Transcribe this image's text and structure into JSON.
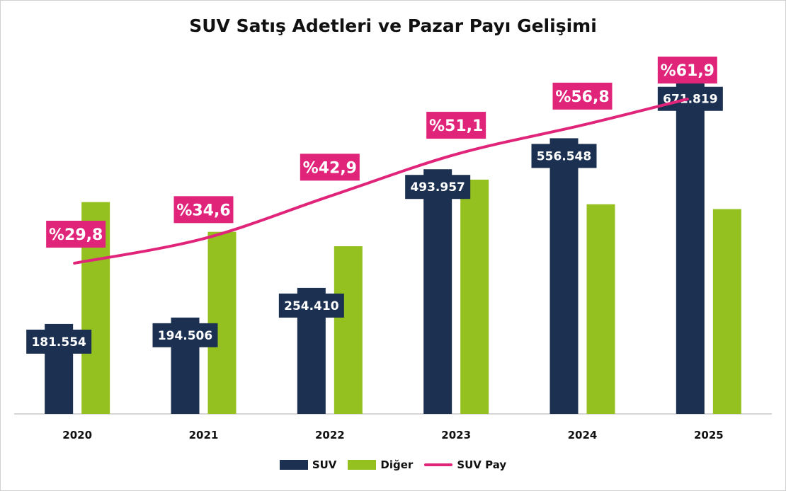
{
  "colors": {
    "suv": "#1c3152",
    "diger": "#94c11f",
    "pay": "#e0247a",
    "axis": "#c8c8c8"
  },
  "chart_data": {
    "type": "bar",
    "title": "SUV Satış Adetleri ve Pazar Payı Gelişimi",
    "categories": [
      "2020",
      "2021",
      "2022",
      "2023",
      "2024",
      "2025"
    ],
    "series": [
      {
        "name": "SUV",
        "type": "bar",
        "values": [
          181554,
          194506,
          254410,
          493957,
          556548,
          671819
        ],
        "labels": [
          "181.554",
          "194.506",
          "254.410",
          "493.957",
          "556.548",
          "671.819"
        ]
      },
      {
        "name": "Diğer",
        "type": "bar",
        "values": [
          427700,
          367600,
          338600,
          473000,
          423300,
          413500
        ]
      },
      {
        "name": "SUV Pay",
        "type": "line",
        "values": [
          29.8,
          34.6,
          42.9,
          51.1,
          56.8,
          61.9
        ],
        "labels": [
          "%29,8",
          "%34,6",
          "%42,9",
          "%51,1",
          "%56,8",
          "%61,9"
        ]
      }
    ],
    "ylim": [
      0,
      700000
    ],
    "y2lim": [
      0,
      70
    ],
    "grid": false,
    "legend": "bottom"
  }
}
